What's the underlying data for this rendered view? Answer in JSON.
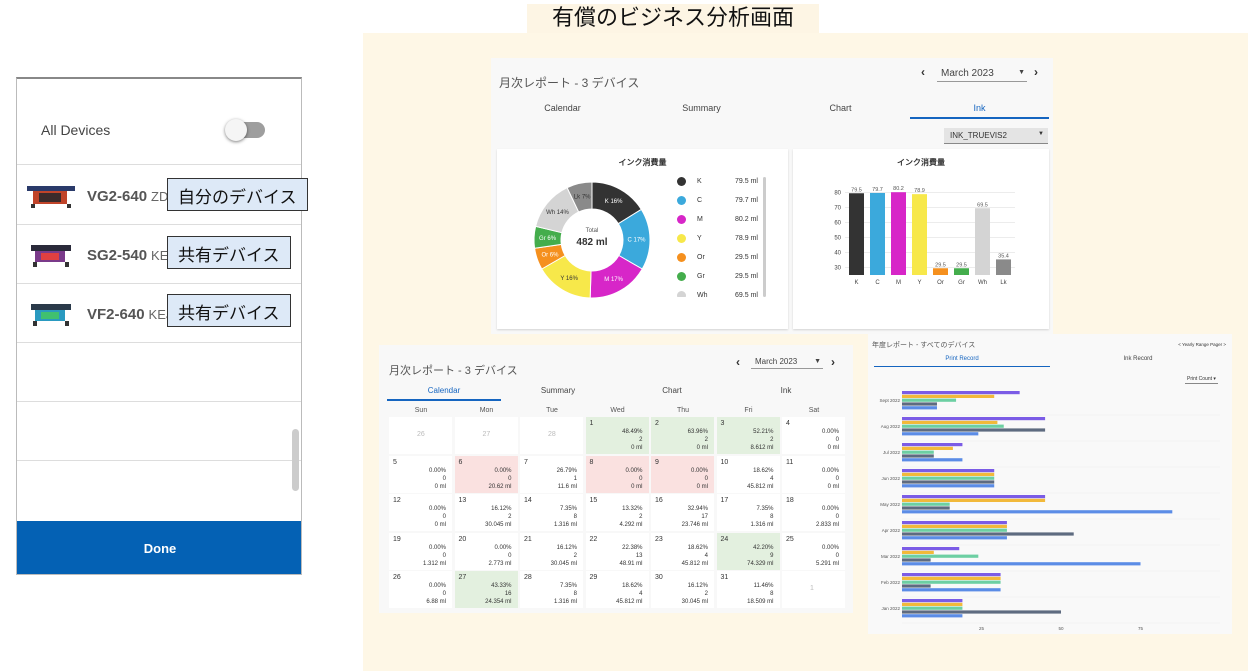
{
  "banner": "有償のビジネス分析画面",
  "devices_panel": {
    "all_devices_label": "All Devices",
    "devices": [
      {
        "model": "VG2-640",
        "serial": "ZDV"
      },
      {
        "model": "SG2-540",
        "serial": "KEA"
      },
      {
        "model": "VF2-640",
        "serial": "KEJ"
      }
    ],
    "done_label": "Done",
    "callouts": [
      "自分のデバイス",
      "共有デバイス",
      "共有デバイス"
    ]
  },
  "monthly_ink": {
    "title": "月次レポート - 3 デバイス",
    "month": "March 2023",
    "tabs": [
      "Calendar",
      "Summary",
      "Chart",
      "Ink"
    ],
    "active_tab": "Ink",
    "ink_select": "INK_TRUEVIS2",
    "donut_card_title": "インク消費量",
    "bar_card_title": "インク消費量",
    "total_label": "Total",
    "total_value": "482 ml",
    "chart_data": {
      "type": "bar",
      "categories": [
        "K",
        "C",
        "M",
        "Y",
        "Or",
        "Gr",
        "Wh",
        "Lk"
      ],
      "values": [
        79.5,
        79.7,
        80.2,
        78.9,
        29.5,
        29.5,
        69.5,
        35.4
      ],
      "value_labels": [
        "79.5",
        "79.7",
        "80.2",
        "78.9",
        "29.5",
        "29.5",
        "69.5",
        "35.4"
      ],
      "yticks": [
        "80",
        "70",
        "60",
        "50",
        "40",
        "30"
      ],
      "ylim": [
        25,
        85
      ],
      "colors": [
        "#333333",
        "#3ba9dc",
        "#d726c8",
        "#f7e84a",
        "#f5901e",
        "#44ad4c",
        "#d4d4d4",
        "#8a8a8a"
      ]
    },
    "donut_labels": [
      "K 16%",
      "C 17%",
      "M 17%",
      "Y 16%",
      "Or 6%",
      "Gr 6%",
      "Wh 14%",
      "Lk 7%"
    ],
    "donut_shares": [
      16,
      17,
      17,
      16,
      6,
      6,
      14,
      7
    ],
    "legend": [
      {
        "name": "K",
        "value": "79.5 ml"
      },
      {
        "name": "C",
        "value": "79.7 ml"
      },
      {
        "name": "M",
        "value": "80.2 ml"
      },
      {
        "name": "Y",
        "value": "78.9 ml"
      },
      {
        "name": "Or",
        "value": "29.5 ml"
      },
      {
        "name": "Gr",
        "value": "29.5 ml"
      },
      {
        "name": "Wh",
        "value": "69.5 ml"
      }
    ]
  },
  "monthly_calendar": {
    "title": "月次レポート - 3 デバイス",
    "month": "March 2023",
    "tabs": [
      "Calendar",
      "Summary",
      "Chart",
      "Ink"
    ],
    "active_tab": "Calendar",
    "weekdays": [
      "Sun",
      "Mon",
      "Tue",
      "Wed",
      "Thu",
      "Fri",
      "Sat"
    ],
    "weeks": [
      [
        {
          "d": "26",
          "s": "grey"
        },
        {
          "d": "27",
          "s": "grey"
        },
        {
          "d": "28",
          "s": "grey"
        },
        {
          "d": "1",
          "s": "green",
          "a": "48.49%",
          "b": "2",
          "c": "0 ml"
        },
        {
          "d": "2",
          "s": "green",
          "a": "63.96%",
          "b": "2",
          "c": "0 ml"
        },
        {
          "d": "3",
          "s": "green",
          "a": "52.21%",
          "b": "2",
          "c": "8.612 ml"
        },
        {
          "d": "4",
          "s": "white",
          "a": "0.00%",
          "b": "0",
          "c": "0 ml"
        }
      ],
      [
        {
          "d": "5",
          "s": "white",
          "a": "0.00%",
          "b": "0",
          "c": "0 ml"
        },
        {
          "d": "6",
          "s": "red",
          "a": "0.00%",
          "b": "0",
          "c": "20.62 ml"
        },
        {
          "d": "7",
          "s": "white",
          "a": "26.79%",
          "b": "1",
          "c": "11.6 ml"
        },
        {
          "d": "8",
          "s": "red",
          "a": "0.00%",
          "b": "0",
          "c": "0 ml"
        },
        {
          "d": "9",
          "s": "red",
          "a": "0.00%",
          "b": "0",
          "c": "0 ml"
        },
        {
          "d": "10",
          "s": "white",
          "a": "18.62%",
          "b": "4",
          "c": "45.812 ml"
        },
        {
          "d": "11",
          "s": "white",
          "a": "0.00%",
          "b": "0",
          "c": "0 ml"
        }
      ],
      [
        {
          "d": "12",
          "s": "white",
          "a": "0.00%",
          "b": "0",
          "c": "0 ml"
        },
        {
          "d": "13",
          "s": "white",
          "a": "16.12%",
          "b": "2",
          "c": "30.045 ml"
        },
        {
          "d": "14",
          "s": "white",
          "a": "7.35%",
          "b": "8",
          "c": "1.316 ml"
        },
        {
          "d": "15",
          "s": "white",
          "a": "13.32%",
          "b": "2",
          "c": "4.292 ml"
        },
        {
          "d": "16",
          "s": "white",
          "a": "32.94%",
          "b": "17",
          "c": "23.746 ml"
        },
        {
          "d": "17",
          "s": "white",
          "a": "7.35%",
          "b": "8",
          "c": "1.316 ml"
        },
        {
          "d": "18",
          "s": "white",
          "a": "0.00%",
          "b": "0",
          "c": "2.833 ml"
        }
      ],
      [
        {
          "d": "19",
          "s": "white",
          "a": "0.00%",
          "b": "0",
          "c": "1.312 ml"
        },
        {
          "d": "20",
          "s": "white",
          "a": "0.00%",
          "b": "0",
          "c": "2.773 ml"
        },
        {
          "d": "21",
          "s": "white",
          "a": "16.12%",
          "b": "2",
          "c": "30.045 ml"
        },
        {
          "d": "22",
          "s": "white",
          "a": "22.38%",
          "b": "13",
          "c": "48.91 ml"
        },
        {
          "d": "23",
          "s": "white",
          "a": "18.62%",
          "b": "4",
          "c": "45.812 ml"
        },
        {
          "d": "24",
          "s": "green",
          "a": "42.20%",
          "b": "9",
          "c": "74.329 ml"
        },
        {
          "d": "25",
          "s": "white",
          "a": "0.00%",
          "b": "0",
          "c": "5.291 ml"
        }
      ],
      [
        {
          "d": "26",
          "s": "white",
          "a": "0.00%",
          "b": "0",
          "c": "6.88 ml"
        },
        {
          "d": "27",
          "s": "green",
          "a": "43.33%",
          "b": "16",
          "c": "24.354 ml"
        },
        {
          "d": "28",
          "s": "white",
          "a": "7.35%",
          "b": "8",
          "c": "1.316 ml"
        },
        {
          "d": "29",
          "s": "white",
          "a": "18.62%",
          "b": "4",
          "c": "45.812 ml"
        },
        {
          "d": "30",
          "s": "white",
          "a": "16.12%",
          "b": "2",
          "c": "30.045 ml"
        },
        {
          "d": "31",
          "s": "white",
          "a": "11.46%",
          "b": "8",
          "c": "18.509 ml"
        },
        {
          "d": "1",
          "s": "grey"
        }
      ]
    ]
  },
  "annual": {
    "title": "年度レポート - すべてのデバイス",
    "range_pager": "< Yearly Range Pager >",
    "tabs": [
      "Print Record",
      "Ink Record"
    ],
    "active_tab": "Print Record",
    "select": "Print Count",
    "colors": [
      "#7b5ce6",
      "#f2b93a",
      "#6dcfa3",
      "#5e6b80",
      "#5b8ce6"
    ],
    "chart_data": {
      "type": "bar",
      "orientation": "horizontal",
      "categories": [
        "Sept 2022",
        "Aug 2022",
        "Jul 2022",
        "Jun 2022",
        "May 2022",
        "Apr 2022",
        "Mar 2022",
        "Feb 2022",
        "Jan 2022"
      ],
      "xticks": [
        "25",
        "50",
        "75"
      ],
      "xlim": [
        0,
        100
      ],
      "series": [
        {
          "values": [
            37,
            45,
            19,
            29,
            45,
            33,
            18,
            31,
            19
          ]
        },
        {
          "values": [
            29,
            30,
            16,
            29,
            45,
            33,
            10,
            31,
            19
          ]
        },
        {
          "values": [
            17,
            32,
            10,
            29,
            15,
            33,
            24,
            31,
            19
          ]
        },
        {
          "values": [
            11,
            45,
            10,
            29,
            15,
            54,
            9,
            9,
            50
          ]
        },
        {
          "values": [
            11,
            24,
            19,
            29,
            85,
            33,
            75,
            31,
            19
          ]
        }
      ]
    }
  }
}
